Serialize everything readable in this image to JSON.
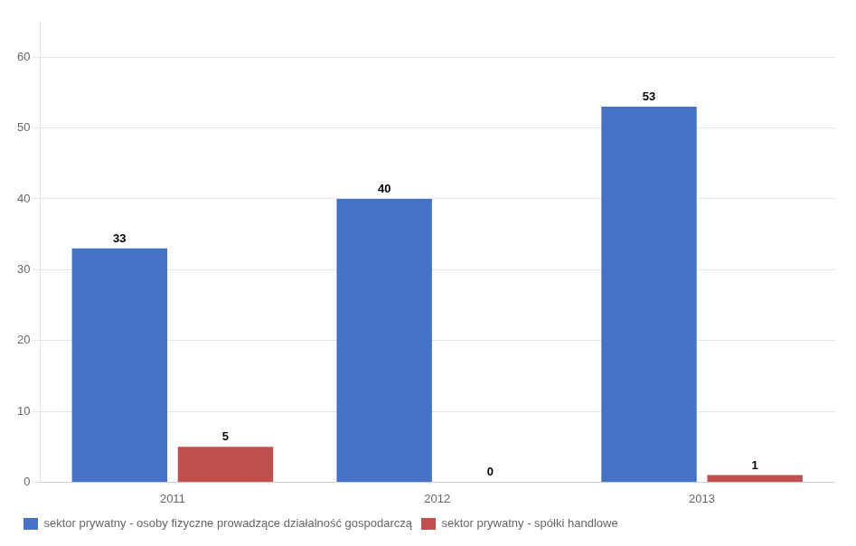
{
  "chart_data": {
    "type": "bar",
    "categories": [
      "2011",
      "2012",
      "2013"
    ],
    "series": [
      {
        "name": "sektor prywatny - osoby fizyczne prowadzące działalność gospodarczą",
        "color": "#4472C4",
        "values": [
          33,
          40,
          53
        ]
      },
      {
        "name": "sektor prywatny - spółki handlowe",
        "color": "#C0504D",
        "values": [
          5,
          0,
          1
        ]
      }
    ],
    "ylim": [
      0,
      65
    ],
    "yticks": [
      0,
      10,
      20,
      30,
      40,
      50,
      60
    ],
    "grid": true,
    "legend": "bottom",
    "data_labels": true
  }
}
